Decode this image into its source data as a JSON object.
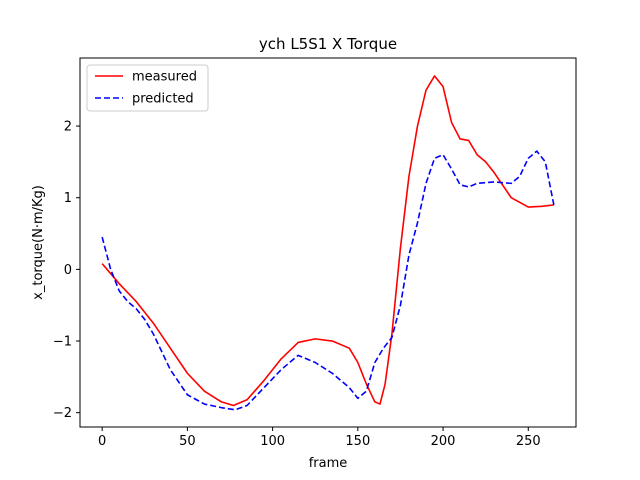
{
  "chart_data": {
    "type": "line",
    "title": "ych L5S1 X Torque",
    "xlabel": "frame",
    "ylabel": "x_torque(N·m/Kg)",
    "xlim": [
      -13,
      278
    ],
    "ylim": [
      -2.2,
      2.95
    ],
    "xticks": [
      0,
      50,
      100,
      150,
      200,
      250
    ],
    "xtick_labels": [
      "0",
      "50",
      "100",
      "150",
      "200",
      "250"
    ],
    "yticks": [
      -2,
      -1,
      0,
      1,
      2
    ],
    "ytick_labels": [
      "−2",
      "−1",
      "0",
      "1",
      "2"
    ],
    "grid": false,
    "legend_position": "upper left",
    "series": [
      {
        "name": "measured",
        "color": "#ff0000",
        "style": "solid",
        "x": [
          0,
          10,
          20,
          30,
          40,
          50,
          60,
          70,
          77,
          85,
          95,
          105,
          115,
          125,
          135,
          145,
          150,
          155,
          160,
          163,
          166,
          170,
          175,
          180,
          185,
          190,
          195,
          200,
          205,
          210,
          215,
          220,
          225,
          230,
          240,
          250,
          258,
          265
        ],
        "y": [
          0.08,
          -0.2,
          -0.45,
          -0.75,
          -1.1,
          -1.45,
          -1.7,
          -1.85,
          -1.9,
          -1.82,
          -1.55,
          -1.25,
          -1.02,
          -0.97,
          -1.0,
          -1.1,
          -1.3,
          -1.6,
          -1.85,
          -1.88,
          -1.6,
          -0.9,
          0.3,
          1.3,
          2.0,
          2.5,
          2.7,
          2.55,
          2.05,
          1.82,
          1.8,
          1.6,
          1.5,
          1.35,
          1.0,
          0.87,
          0.88,
          0.9
        ]
      },
      {
        "name": "predicted",
        "color": "#0000ff",
        "style": "dashed",
        "x": [
          0,
          5,
          10,
          15,
          20,
          25,
          30,
          35,
          40,
          50,
          60,
          70,
          78,
          85,
          95,
          105,
          115,
          125,
          135,
          145,
          150,
          155,
          160,
          165,
          170,
          175,
          180,
          185,
          190,
          195,
          200,
          205,
          210,
          215,
          220,
          230,
          240,
          245,
          250,
          255,
          260,
          265
        ],
        "y": [
          0.45,
          0.0,
          -0.3,
          -0.45,
          -0.55,
          -0.7,
          -0.9,
          -1.15,
          -1.4,
          -1.75,
          -1.88,
          -1.93,
          -1.96,
          -1.9,
          -1.65,
          -1.4,
          -1.2,
          -1.3,
          -1.45,
          -1.65,
          -1.8,
          -1.7,
          -1.3,
          -1.1,
          -0.95,
          -0.5,
          0.2,
          0.65,
          1.2,
          1.55,
          1.6,
          1.4,
          1.18,
          1.15,
          1.2,
          1.22,
          1.2,
          1.3,
          1.55,
          1.65,
          1.5,
          0.9
        ]
      }
    ]
  }
}
